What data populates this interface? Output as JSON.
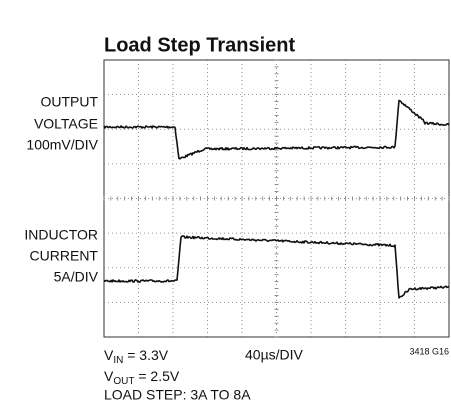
{
  "header": {
    "title": "Load Step Transient"
  },
  "channels": [
    {
      "lines": [
        "OUTPUT",
        "VOLTAGE",
        "100mV/DIV"
      ]
    },
    {
      "lines": [
        "INDUCTOR",
        "CURRENT",
        "5A/DIV"
      ]
    }
  ],
  "footer": {
    "vin": {
      "symbol": "V",
      "subscript": "IN",
      "rest": " = 3.3V"
    },
    "vout": {
      "symbol": "V",
      "subscript": "OUT",
      "rest": " = 2.5V"
    },
    "load": "LOAD STEP: 3A TO 8A",
    "timebase": "40µs/DIV",
    "figure_id": "3418 G16"
  }
}
